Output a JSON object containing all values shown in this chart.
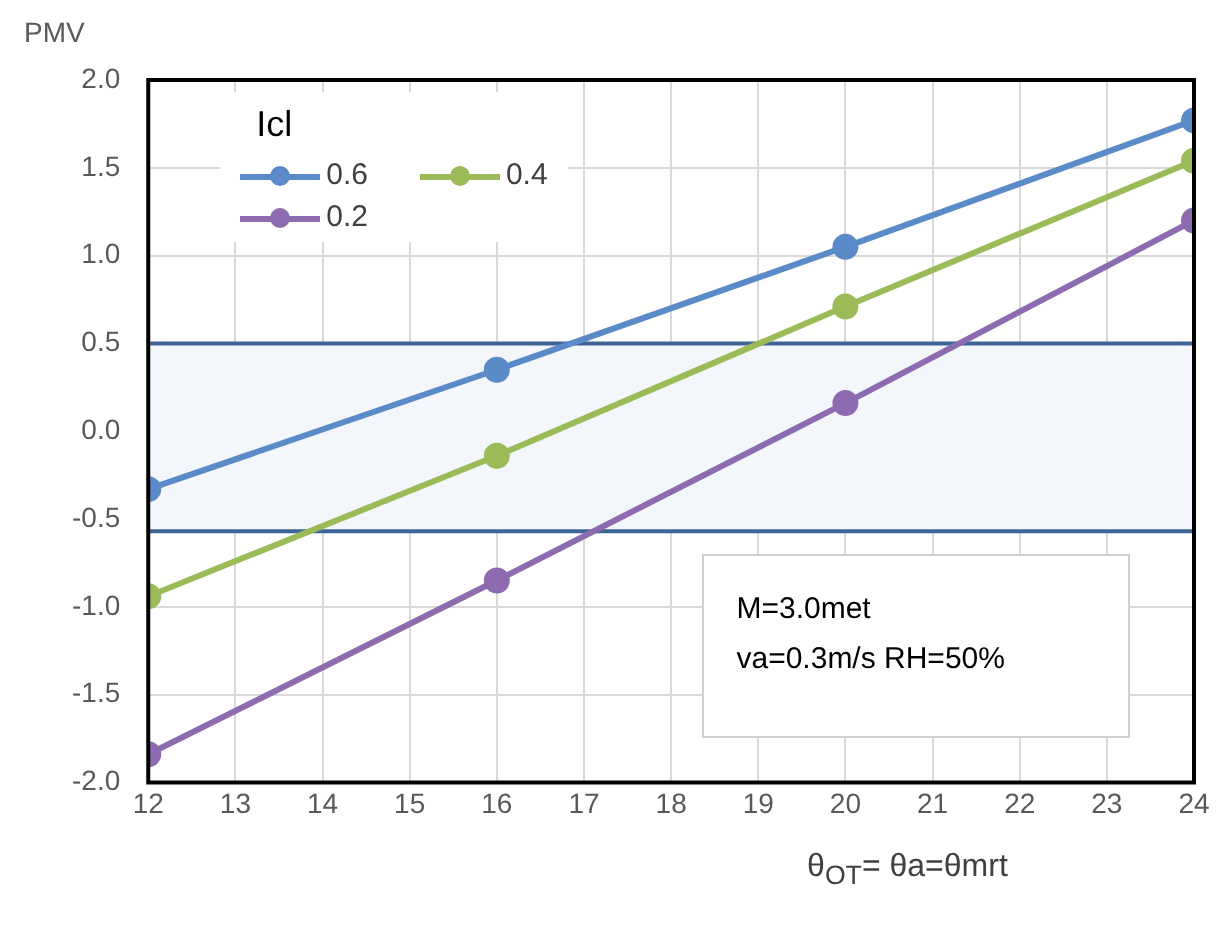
{
  "chart_data": {
    "type": "line",
    "ylabel": "PMV",
    "xlabel": "θ$_{OT}$= θa=θmrt",
    "legend_title": "Icl",
    "legend": "top left",
    "grid": true,
    "marker": "circle",
    "line_style": "solid",
    "x": [
      12,
      16,
      20,
      24
    ],
    "series": [
      {
        "name": "0.6",
        "color": "#5b8ac9",
        "values": [
          -0.33,
          0.35,
          1.05,
          1.77
        ]
      },
      {
        "name": "0.4",
        "color": "#9bbb59",
        "values": [
          -0.94,
          -0.14,
          0.71,
          1.54
        ]
      },
      {
        "name": "0.2",
        "color": "#8c6bb1",
        "values": [
          -1.84,
          -0.85,
          0.16,
          1.2
        ]
      }
    ],
    "xlim": [
      12,
      24
    ],
    "xticks": [
      12,
      13,
      14,
      15,
      16,
      17,
      18,
      19,
      20,
      21,
      22,
      23,
      24
    ],
    "ylim": [
      -2,
      2
    ],
    "yticks": [
      {
        "value": -2,
        "label": "-2.0"
      },
      {
        "value": -1.5,
        "label": "-1.5"
      },
      {
        "value": -1,
        "label": "-1.0"
      },
      {
        "value": -0.5,
        "label": "-0.5"
      },
      {
        "value": 0,
        "label": "0.0"
      },
      {
        "value": 0.5,
        "label": "0.5"
      },
      {
        "value": 1,
        "label": "1.0"
      },
      {
        "value": 1.5,
        "label": "1.5"
      },
      {
        "value": 2,
        "label": "2.0"
      }
    ],
    "bands": [
      {
        "axis": "y",
        "from": -0.57,
        "to": 0.5,
        "color": "#f3f6fb"
      }
    ],
    "ref_lines": [
      {
        "axis": "y",
        "value": 0.5,
        "color": "#3e6496"
      },
      {
        "axis": "y",
        "value": -0.57,
        "color": "#3e6496"
      }
    ],
    "annotations": [
      "M=3.0met",
      "va=0.3m/s RH=50%"
    ]
  }
}
